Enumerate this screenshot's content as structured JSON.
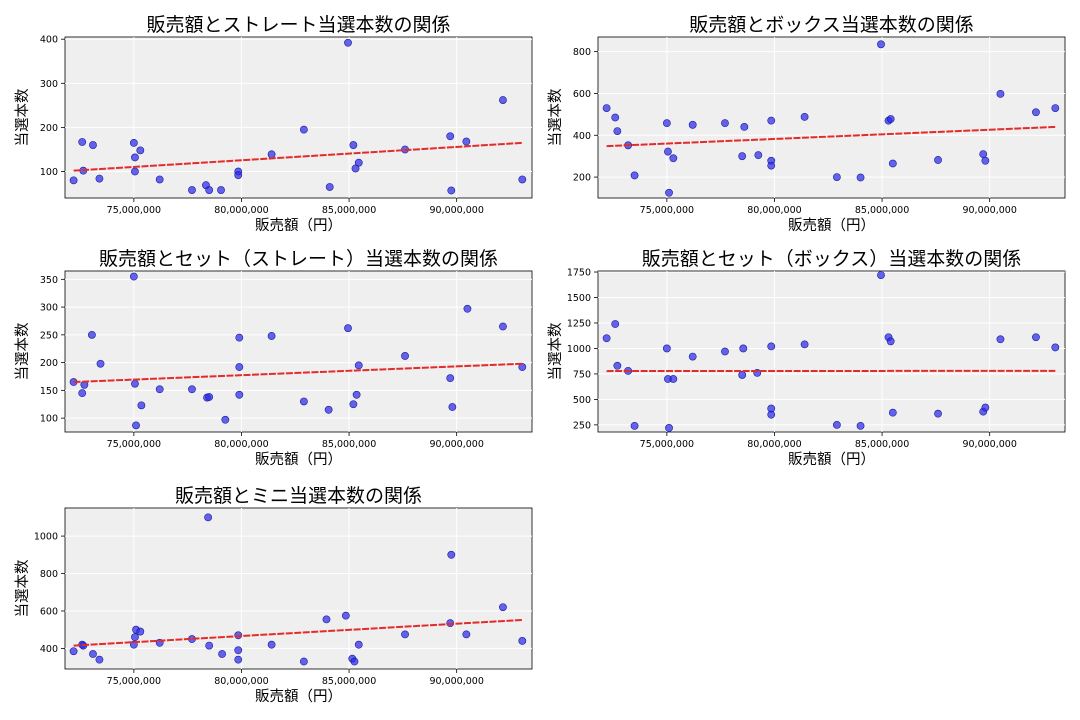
{
  "colors": {
    "points": "#2a2ae6",
    "trend": "#e32b2b",
    "panel_bg": "#efefef",
    "grid": "#ffffff"
  },
  "chart_data": [
    {
      "type": "scatter",
      "title": "販売額とストレート当選本数の関係",
      "xlabel": "販売額（円）",
      "ylabel": "当選本数",
      "xlim": [
        71800000,
        93500000
      ],
      "ylim": [
        40,
        405
      ],
      "xticks": [
        {
          "v": 75000000,
          "label": "75,000,000"
        },
        {
          "v": 80000000,
          "label": "80,000,000"
        },
        {
          "v": 85000000,
          "label": "85,000,000"
        },
        {
          "v": 90000000,
          "label": "90,000,000"
        }
      ],
      "yticks": [
        {
          "v": 100,
          "label": "100"
        },
        {
          "v": 200,
          "label": "200"
        },
        {
          "v": 300,
          "label": "300"
        },
        {
          "v": 400,
          "label": "400"
        }
      ],
      "grid": true,
      "points": [
        [
          72200000,
          80
        ],
        [
          72600000,
          167
        ],
        [
          72650000,
          102
        ],
        [
          73100000,
          160
        ],
        [
          73400000,
          84
        ],
        [
          75000000,
          165
        ],
        [
          75050000,
          132
        ],
        [
          75050000,
          100
        ],
        [
          75300000,
          148
        ],
        [
          76200000,
          82
        ],
        [
          77700000,
          58
        ],
        [
          78350000,
          69
        ],
        [
          78500000,
          58
        ],
        [
          79050000,
          58
        ],
        [
          79850000,
          100
        ],
        [
          79850000,
          92
        ],
        [
          81400000,
          139
        ],
        [
          82900000,
          195
        ],
        [
          84100000,
          65
        ],
        [
          84950000,
          392
        ],
        [
          85200000,
          160
        ],
        [
          85300000,
          107
        ],
        [
          85450000,
          120
        ],
        [
          87600000,
          150
        ],
        [
          89700000,
          180
        ],
        [
          89750000,
          57
        ],
        [
          90450000,
          168
        ],
        [
          92150000,
          262
        ],
        [
          93050000,
          82
        ]
      ],
      "trend": [
        [
          72200000,
          102
        ],
        [
          93050000,
          165
        ]
      ]
    },
    {
      "type": "scatter",
      "title": "販売額とボックス当選本数の関係",
      "xlabel": "販売額（円）",
      "ylabel": "当選本数",
      "xlim": [
        71800000,
        93500000
      ],
      "ylim": [
        100,
        870
      ],
      "xticks": [
        {
          "v": 75000000,
          "label": "75,000,000"
        },
        {
          "v": 80000000,
          "label": "80,000,000"
        },
        {
          "v": 85000000,
          "label": "85,000,000"
        },
        {
          "v": 90000000,
          "label": "90,000,000"
        }
      ],
      "yticks": [
        {
          "v": 200,
          "label": "200"
        },
        {
          "v": 400,
          "label": "400"
        },
        {
          "v": 600,
          "label": "600"
        },
        {
          "v": 800,
          "label": "800"
        }
      ],
      "grid": true,
      "points": [
        [
          72200000,
          530
        ],
        [
          72600000,
          485
        ],
        [
          72700000,
          420
        ],
        [
          73200000,
          352
        ],
        [
          73500000,
          208
        ],
        [
          75000000,
          458
        ],
        [
          75050000,
          322
        ],
        [
          75100000,
          125
        ],
        [
          75300000,
          290
        ],
        [
          76200000,
          450
        ],
        [
          77700000,
          458
        ],
        [
          78500000,
          300
        ],
        [
          78600000,
          440
        ],
        [
          79250000,
          305
        ],
        [
          79850000,
          470
        ],
        [
          79850000,
          278
        ],
        [
          79850000,
          255
        ],
        [
          81400000,
          488
        ],
        [
          82900000,
          200
        ],
        [
          84000000,
          198
        ],
        [
          84950000,
          835
        ],
        [
          85300000,
          470
        ],
        [
          85400000,
          478
        ],
        [
          85500000,
          265
        ],
        [
          87600000,
          282
        ],
        [
          89700000,
          310
        ],
        [
          89800000,
          278
        ],
        [
          90500000,
          598
        ],
        [
          92150000,
          510
        ],
        [
          93050000,
          530
        ]
      ],
      "trend": [
        [
          72200000,
          348
        ],
        [
          93050000,
          440
        ]
      ]
    },
    {
      "type": "scatter",
      "title": "販売額とセット（ストレート）当選本数の関係",
      "xlabel": "販売額（円）",
      "ylabel": "当選本数",
      "xlim": [
        71800000,
        93500000
      ],
      "ylim": [
        75,
        365
      ],
      "xticks": [
        {
          "v": 75000000,
          "label": "75,000,000"
        },
        {
          "v": 80000000,
          "label": "80,000,000"
        },
        {
          "v": 85000000,
          "label": "85,000,000"
        },
        {
          "v": 90000000,
          "label": "90,000,000"
        }
      ],
      "yticks": [
        {
          "v": 100,
          "label": "100"
        },
        {
          "v": 150,
          "label": "150"
        },
        {
          "v": 200,
          "label": "200"
        },
        {
          "v": 250,
          "label": "250"
        },
        {
          "v": 300,
          "label": "300"
        },
        {
          "v": 350,
          "label": "350"
        }
      ],
      "grid": true,
      "points": [
        [
          72200000,
          165
        ],
        [
          72600000,
          145
        ],
        [
          72700000,
          160
        ],
        [
          73050000,
          250
        ],
        [
          73450000,
          198
        ],
        [
          75000000,
          355
        ],
        [
          75050000,
          162
        ],
        [
          75100000,
          87
        ],
        [
          75350000,
          123
        ],
        [
          76200000,
          152
        ],
        [
          77700000,
          152
        ],
        [
          78400000,
          137
        ],
        [
          78500000,
          138
        ],
        [
          79250000,
          97
        ],
        [
          79900000,
          245
        ],
        [
          79900000,
          192
        ],
        [
          79900000,
          142
        ],
        [
          81400000,
          248
        ],
        [
          82900000,
          130
        ],
        [
          84050000,
          115
        ],
        [
          84950000,
          262
        ],
        [
          85200000,
          125
        ],
        [
          85350000,
          142
        ],
        [
          85450000,
          195
        ],
        [
          87600000,
          212
        ],
        [
          89700000,
          172
        ],
        [
          89800000,
          120
        ],
        [
          90500000,
          297
        ],
        [
          92150000,
          265
        ],
        [
          93050000,
          192
        ]
      ],
      "trend": [
        [
          72200000,
          165
        ],
        [
          93050000,
          198
        ]
      ]
    },
    {
      "type": "scatter",
      "title": "販売額とセット（ボックス）当選本数の関係",
      "xlabel": "販売額（円）",
      "ylabel": "当選本数",
      "xlim": [
        71800000,
        93500000
      ],
      "ylim": [
        180,
        1760
      ],
      "xticks": [
        {
          "v": 75000000,
          "label": "75,000,000"
        },
        {
          "v": 80000000,
          "label": "80,000,000"
        },
        {
          "v": 85000000,
          "label": "85,000,000"
        },
        {
          "v": 90000000,
          "label": "90,000,000"
        }
      ],
      "yticks": [
        {
          "v": 250,
          "label": "250"
        },
        {
          "v": 500,
          "label": "500"
        },
        {
          "v": 750,
          "label": "750"
        },
        {
          "v": 1000,
          "label": "1000"
        },
        {
          "v": 1250,
          "label": "1250"
        },
        {
          "v": 1500,
          "label": "1500"
        },
        {
          "v": 1750,
          "label": "1750"
        }
      ],
      "grid": true,
      "points": [
        [
          72200000,
          1100
        ],
        [
          72600000,
          1240
        ],
        [
          72700000,
          830
        ],
        [
          73200000,
          780
        ],
        [
          73500000,
          240
        ],
        [
          75000000,
          1000
        ],
        [
          75050000,
          700
        ],
        [
          75100000,
          220
        ],
        [
          75300000,
          700
        ],
        [
          76200000,
          920
        ],
        [
          77700000,
          970
        ],
        [
          78500000,
          740
        ],
        [
          78550000,
          1000
        ],
        [
          79200000,
          760
        ],
        [
          79850000,
          1020
        ],
        [
          79850000,
          410
        ],
        [
          79850000,
          350
        ],
        [
          81400000,
          1040
        ],
        [
          82900000,
          250
        ],
        [
          84000000,
          240
        ],
        [
          84950000,
          1720
        ],
        [
          85300000,
          1110
        ],
        [
          85400000,
          1070
        ],
        [
          85500000,
          370
        ],
        [
          87600000,
          360
        ],
        [
          89700000,
          380
        ],
        [
          89800000,
          420
        ],
        [
          90500000,
          1090
        ],
        [
          92150000,
          1110
        ],
        [
          93050000,
          1010
        ]
      ],
      "trend": [
        [
          72200000,
          778
        ],
        [
          93050000,
          780
        ]
      ]
    },
    {
      "type": "scatter",
      "title": "販売額とミニ当選本数の関係",
      "xlabel": "販売額（円）",
      "ylabel": "当選本数",
      "xlim": [
        71800000,
        93500000
      ],
      "ylim": [
        290,
        1150
      ],
      "xticks": [
        {
          "v": 75000000,
          "label": "75,000,000"
        },
        {
          "v": 80000000,
          "label": "80,000,000"
        },
        {
          "v": 85000000,
          "label": "85,000,000"
        },
        {
          "v": 90000000,
          "label": "90,000,000"
        }
      ],
      "yticks": [
        {
          "v": 400,
          "label": "400"
        },
        {
          "v": 600,
          "label": "600"
        },
        {
          "v": 800,
          "label": "800"
        },
        {
          "v": 1000,
          "label": "1000"
        }
      ],
      "grid": true,
      "points": [
        [
          72200000,
          385
        ],
        [
          72600000,
          420
        ],
        [
          72650000,
          415
        ],
        [
          73100000,
          370
        ],
        [
          73400000,
          340
        ],
        [
          75000000,
          420
        ],
        [
          75050000,
          460
        ],
        [
          75100000,
          500
        ],
        [
          75300000,
          490
        ],
        [
          76200000,
          430
        ],
        [
          77700000,
          450
        ],
        [
          78450000,
          1100
        ],
        [
          78500000,
          415
        ],
        [
          79100000,
          370
        ],
        [
          79850000,
          470
        ],
        [
          79850000,
          390
        ],
        [
          79850000,
          340
        ],
        [
          81400000,
          420
        ],
        [
          82900000,
          330
        ],
        [
          83950000,
          555
        ],
        [
          84850000,
          575
        ],
        [
          85150000,
          345
        ],
        [
          85250000,
          330
        ],
        [
          85450000,
          420
        ],
        [
          87600000,
          475
        ],
        [
          89700000,
          535
        ],
        [
          89750000,
          900
        ],
        [
          90450000,
          475
        ],
        [
          92150000,
          620
        ],
        [
          93050000,
          440
        ]
      ],
      "trend": [
        [
          72200000,
          415
        ],
        [
          93050000,
          552
        ]
      ]
    }
  ]
}
